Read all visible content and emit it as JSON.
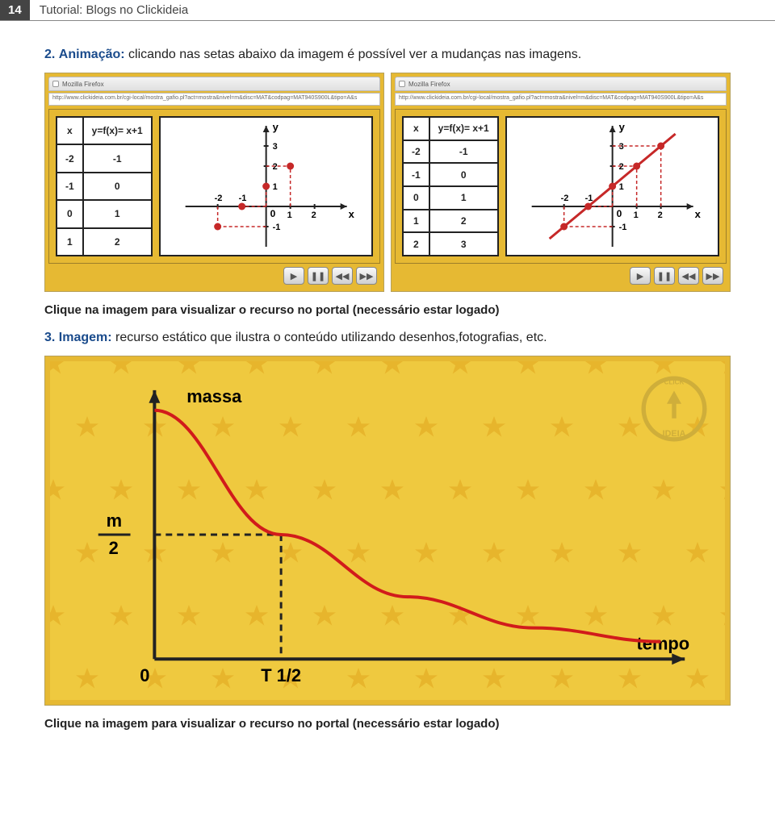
{
  "header": {
    "page_number": "14",
    "title": "Tutorial: Blogs no Clickideia"
  },
  "section2": {
    "num": "2.",
    "kw": "Animação:",
    "text": " clicando nas setas abaixo da imagem é possível ver a mudanças nas imagens."
  },
  "caption1": "Clique na imagem para visualizar o recurso no portal (necessário estar logado)",
  "section3": {
    "num": "3.",
    "kw": "Imagem:",
    "text": " recurso estático que ilustra o conteúdo utilizando desenhos,fotografias, etc."
  },
  "caption2": "Clique na imagem para visualizar o recurso no portal (necessário estar logado)",
  "browser": {
    "tab_title": "Mozilla Firefox",
    "url": "http://www.clickideia.com.br/cgi-local/mostra_gafio.pl?act=mostra&nivel=m&disc=MAT&codpag=MAT940S900L&tipo=A&s"
  },
  "func_table": {
    "headers": [
      "x",
      "y=f(x)= x+1"
    ],
    "rows_left": [
      [
        "-2",
        "-1"
      ],
      [
        "-1",
        "0"
      ],
      [
        "0",
        "1"
      ],
      [
        "1",
        "2"
      ]
    ],
    "rows_right": [
      [
        "-2",
        "-1"
      ],
      [
        "-1",
        "0"
      ],
      [
        "0",
        "1"
      ],
      [
        "1",
        "2"
      ],
      [
        "2",
        "3"
      ]
    ]
  },
  "chart_left": {
    "type": "scatter",
    "xlim": [
      -3,
      3
    ],
    "ylim": [
      -2,
      4
    ],
    "xticks": [
      -2,
      -1,
      0,
      1,
      2
    ],
    "yticks": [
      -1,
      1,
      2,
      3
    ],
    "points": [
      [
        -2,
        -1
      ],
      [
        -1,
        0
      ],
      [
        0,
        1
      ],
      [
        1,
        2
      ]
    ],
    "point_color": "#c62828",
    "axis_color": "#222",
    "guide_color": "#c62828",
    "axis_labels": {
      "x": "x",
      "y": "y"
    }
  },
  "chart_right": {
    "type": "line",
    "xlim": [
      -3,
      3
    ],
    "ylim": [
      -2,
      4
    ],
    "xticks": [
      -2,
      -1,
      0,
      1,
      2
    ],
    "yticks": [
      -1,
      1,
      2,
      3
    ],
    "points": [
      [
        -2,
        -1
      ],
      [
        -1,
        0
      ],
      [
        0,
        1
      ],
      [
        1,
        2
      ],
      [
        2,
        3
      ]
    ],
    "line_color": "#c62828",
    "axis_color": "#222",
    "guide_color": "#c62828",
    "axis_labels": {
      "x": "x",
      "y": "y"
    }
  },
  "controls": [
    "play-icon",
    "pause-icon",
    "rewind-icon",
    "forward-icon"
  ],
  "massa": {
    "type": "line",
    "y_label": "massa",
    "x_label": "tempo",
    "origin_label": "0",
    "x_tick_label": "T 1/2",
    "y_tick_label": "m\n—\n2",
    "axis_color": "#222",
    "curve_color": "#d11b1b",
    "guide_dash": "8,6",
    "bg_color": "#efc93f",
    "star_color": "#e6b128",
    "label_fontsize": 22,
    "curve_width": 4,
    "curve_points": [
      [
        0,
        1.0
      ],
      [
        0.25,
        0.5
      ],
      [
        0.5,
        0.25
      ],
      [
        0.75,
        0.125
      ],
      [
        1.0,
        0.07
      ]
    ],
    "x_guide": 0.25,
    "y_guide": 0.5
  }
}
